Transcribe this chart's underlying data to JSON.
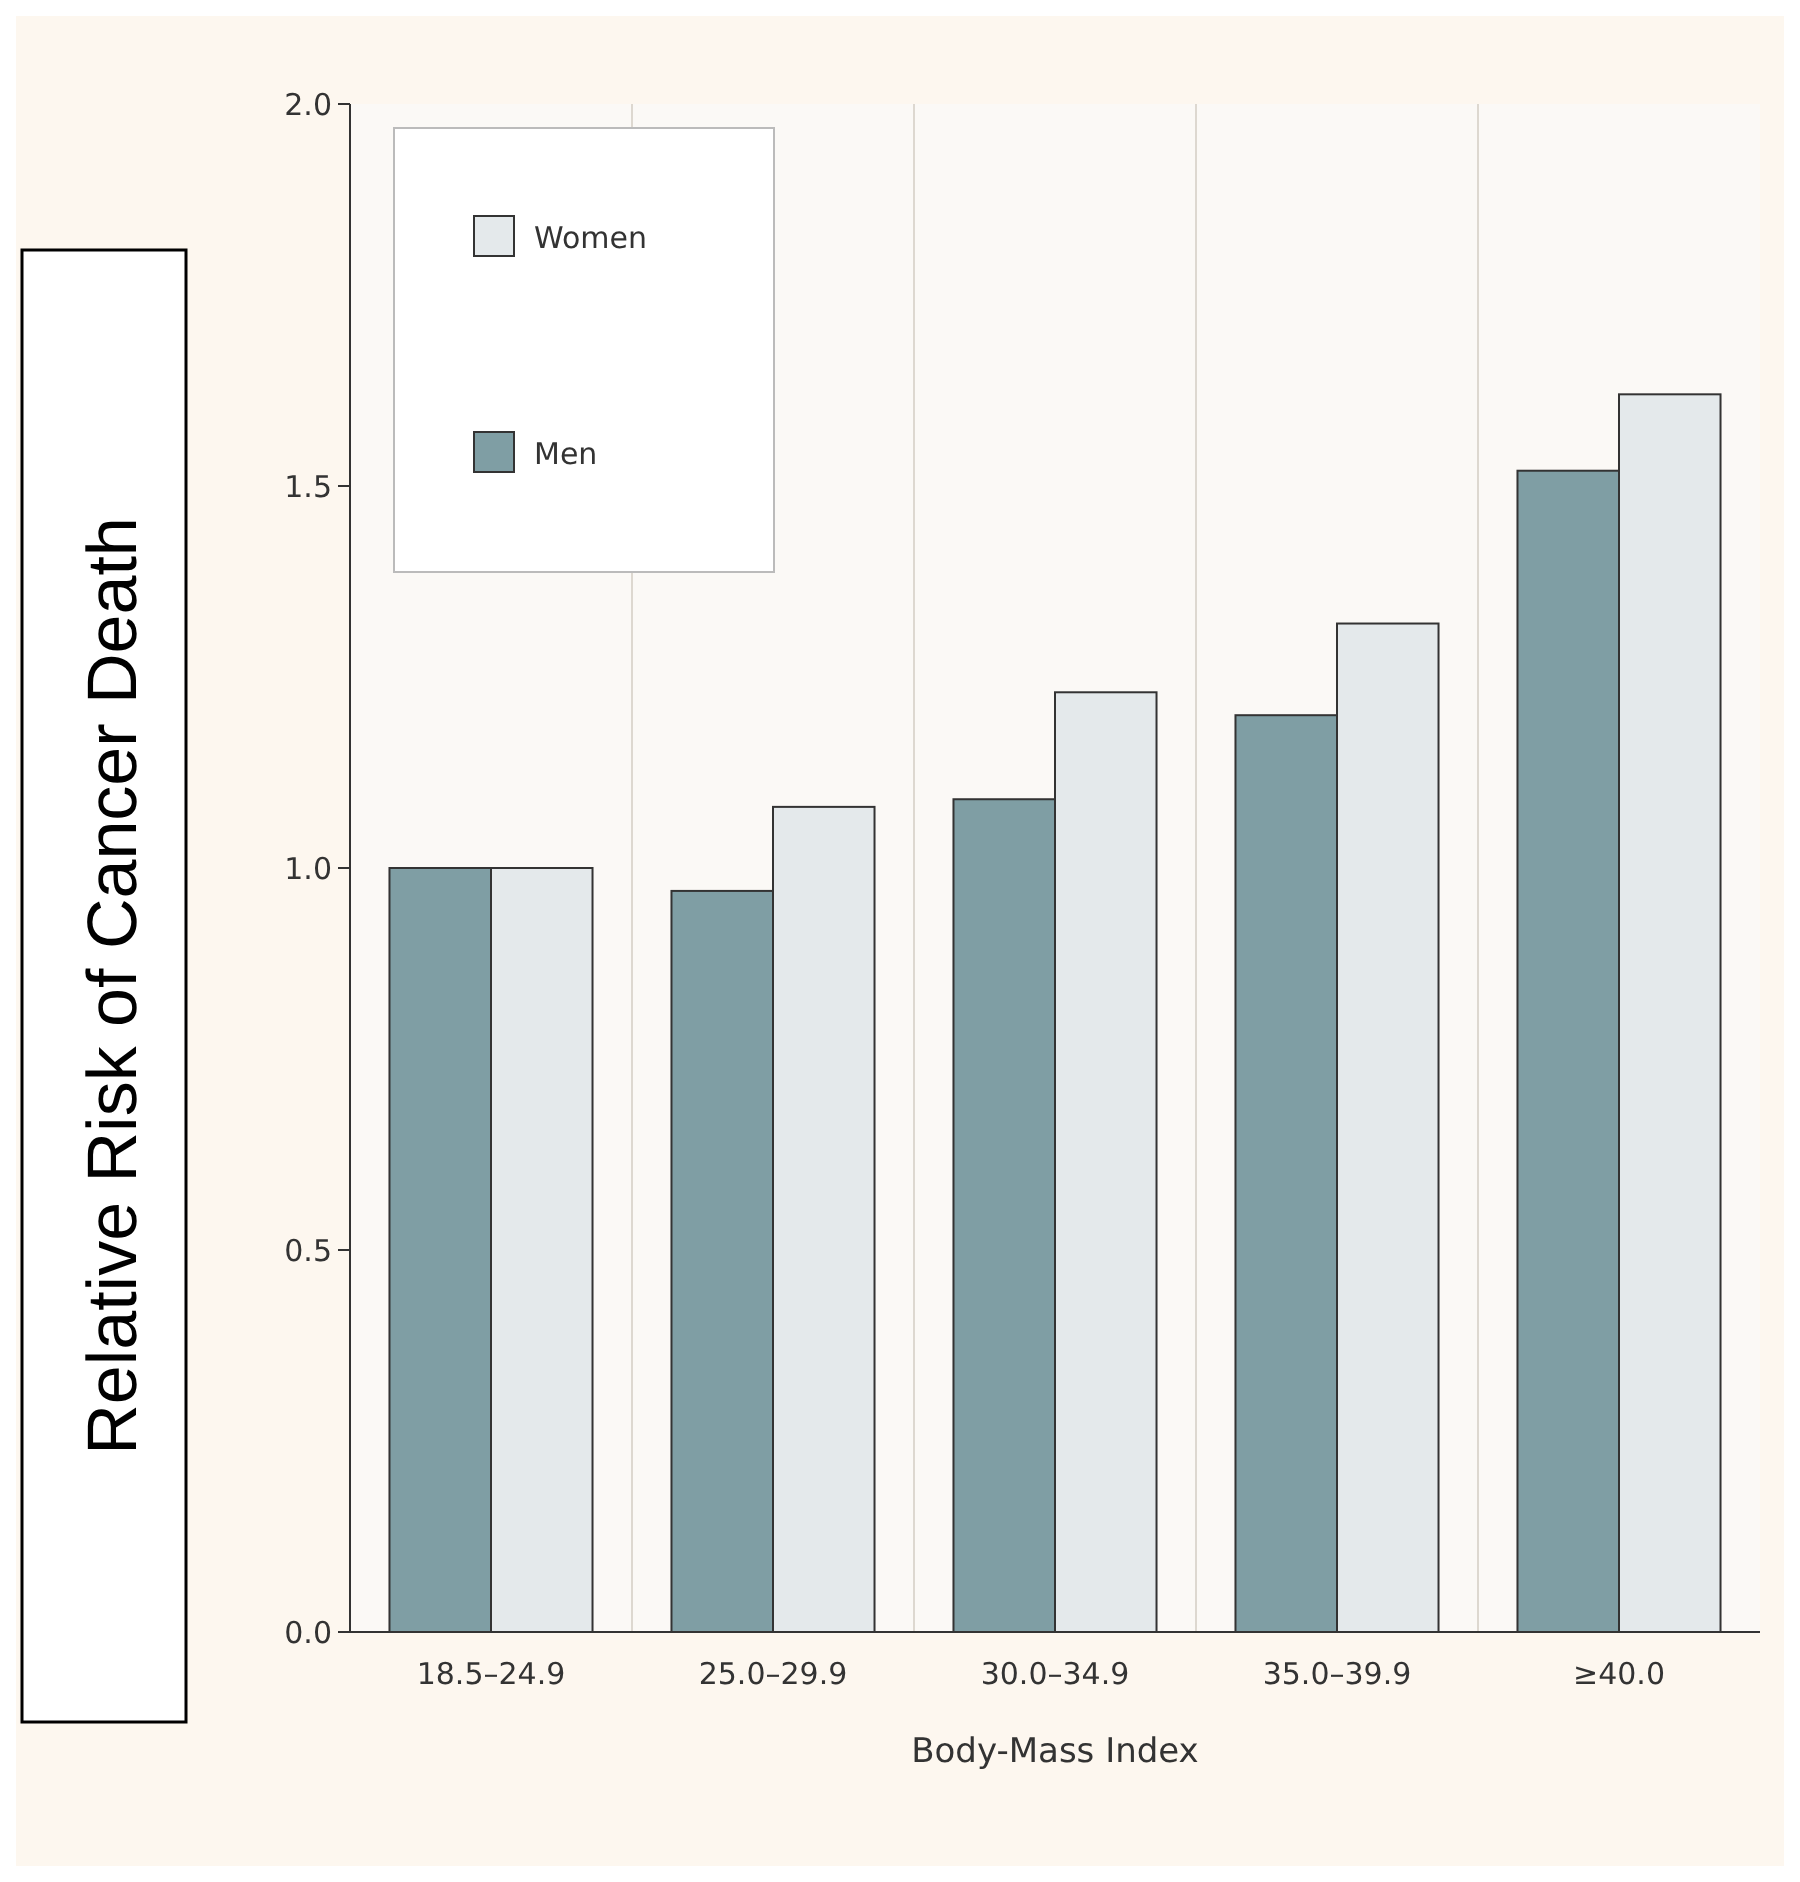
{
  "chart_data": {
    "type": "bar",
    "xlabel": "Body-Mass Index",
    "ylabel": "Relative Risk of Cancer Death",
    "categories": [
      "18.5–24.9",
      "25.0–29.9",
      "30.0–34.9",
      "35.0–39.9",
      "≥40.0"
    ],
    "series": [
      {
        "name": "Men",
        "color": "#7f9ea4",
        "values": [
          1.0,
          0.97,
          1.09,
          1.2,
          1.52
        ]
      },
      {
        "name": "Women",
        "color": "#e4e9eb",
        "values": [
          1.0,
          1.08,
          1.23,
          1.32,
          1.62
        ]
      }
    ],
    "ylim": [
      0,
      2
    ],
    "yticks": [
      {
        "value": 0,
        "label": "0.0"
      },
      {
        "value": 0.5,
        "label": "0.5"
      },
      {
        "value": 1,
        "label": "1.0"
      },
      {
        "value": 1.5,
        "label": "1.5"
      },
      {
        "value": 2,
        "label": "2.0"
      }
    ],
    "grid": "x",
    "legend": "top left"
  }
}
